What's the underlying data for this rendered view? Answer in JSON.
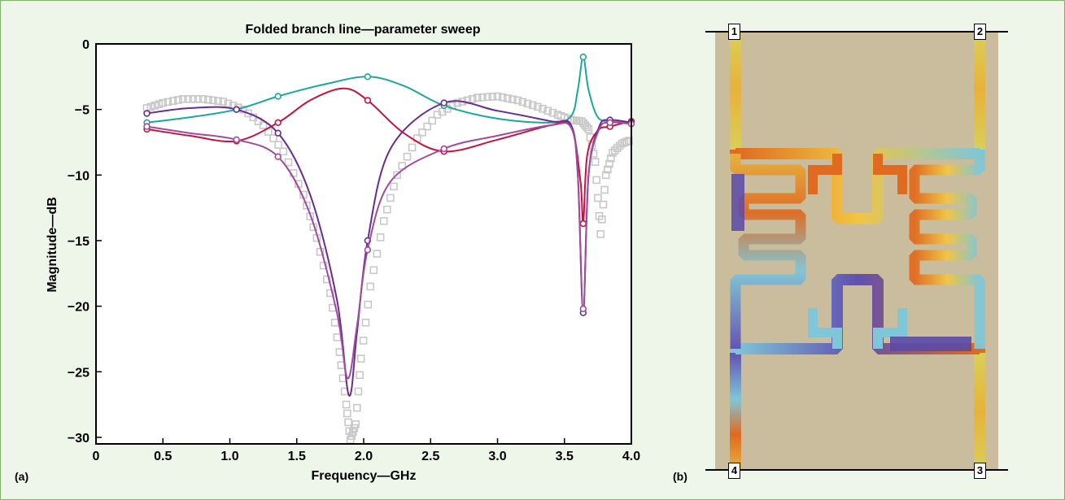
{
  "panels": {
    "a_label": "(a)",
    "b_label": "(b)"
  },
  "layout_ports": [
    "1",
    "2",
    "3",
    "4"
  ],
  "colors": {
    "background": "#eef6ea",
    "border": "#7fb36b",
    "teal": "#1aa89a",
    "red": "#c8123c",
    "purple": "#6a2c8f",
    "magenta": "#a04aa0",
    "measured": "#c8c8c8",
    "board": "#c9bd9e"
  },
  "chart_data": {
    "type": "line",
    "title": "Folded branch line—parameter sweep",
    "xlabel": "Frequency—GHz",
    "ylabel": "Magnitude—dB",
    "xlim": [
      0,
      4.0
    ],
    "ylim": [
      -30.5,
      0
    ],
    "xticks": [
      "0",
      "0.5",
      "1.0",
      "1.5",
      "2.0",
      "2.5",
      "3.0",
      "3.5",
      "4.0"
    ],
    "yticks": [
      "0",
      "−5",
      "−10",
      "−15",
      "−20",
      "−25",
      "−30"
    ],
    "grid": false,
    "series": [
      {
        "color": "teal",
        "marker": "circle",
        "curve": [
          [
            0.38,
            -6.0
          ],
          [
            0.7,
            -5.6
          ],
          [
            1.05,
            -5.0
          ],
          [
            1.36,
            -4.0
          ],
          [
            1.7,
            -3.1
          ],
          [
            2.03,
            -2.5
          ],
          [
            2.3,
            -3.2
          ],
          [
            2.6,
            -4.7
          ],
          [
            3.0,
            -5.7
          ],
          [
            3.4,
            -6.0
          ],
          [
            3.55,
            -5.5
          ],
          [
            3.6,
            -3.5
          ],
          [
            3.64,
            -1.0
          ],
          [
            3.68,
            -3.5
          ],
          [
            3.75,
            -5.6
          ],
          [
            3.85,
            -5.9
          ],
          [
            4.0,
            -6.0
          ]
        ],
        "markers": [
          [
            0.38,
            -6.0
          ],
          [
            1.05,
            -5.0
          ],
          [
            1.36,
            -4.0
          ],
          [
            2.03,
            -2.5
          ],
          [
            2.6,
            -4.7
          ],
          [
            3.64,
            -1.0
          ],
          [
            3.84,
            -6.0
          ]
        ]
      },
      {
        "color": "red",
        "marker": "circle",
        "curve": [
          [
            0.38,
            -6.5
          ],
          [
            0.7,
            -7.0
          ],
          [
            1.05,
            -7.4
          ],
          [
            1.36,
            -6.0
          ],
          [
            1.6,
            -4.3
          ],
          [
            1.85,
            -3.4
          ],
          [
            2.03,
            -4.3
          ],
          [
            2.3,
            -6.8
          ],
          [
            2.6,
            -8.2
          ],
          [
            3.0,
            -7.3
          ],
          [
            3.4,
            -6.2
          ],
          [
            3.55,
            -6.3
          ],
          [
            3.62,
            -10.5
          ],
          [
            3.64,
            -13.7
          ],
          [
            3.67,
            -8.5
          ],
          [
            3.75,
            -6.6
          ],
          [
            3.84,
            -6.3
          ],
          [
            4.0,
            -5.9
          ]
        ],
        "markers": [
          [
            0.38,
            -6.5
          ],
          [
            1.05,
            -7.4
          ],
          [
            1.36,
            -6.0
          ],
          [
            2.03,
            -4.3
          ],
          [
            2.6,
            -8.2
          ],
          [
            3.64,
            -13.7
          ],
          [
            3.84,
            -6.3
          ],
          [
            4.0,
            -5.9
          ]
        ]
      },
      {
        "color": "purple",
        "marker": "circle",
        "curve": [
          [
            0.38,
            -5.3
          ],
          [
            0.7,
            -4.9
          ],
          [
            1.05,
            -5.0
          ],
          [
            1.36,
            -6.8
          ],
          [
            1.6,
            -11.5
          ],
          [
            1.8,
            -19.5
          ],
          [
            1.89,
            -26.8
          ],
          [
            1.95,
            -22.0
          ],
          [
            2.03,
            -15.0
          ],
          [
            2.2,
            -8.0
          ],
          [
            2.6,
            -4.5
          ],
          [
            3.0,
            -5.1
          ],
          [
            3.4,
            -5.9
          ],
          [
            3.55,
            -6.2
          ],
          [
            3.6,
            -10.0
          ],
          [
            3.64,
            -20.5
          ],
          [
            3.68,
            -10.0
          ],
          [
            3.76,
            -6.3
          ],
          [
            3.84,
            -5.8
          ],
          [
            4.0,
            -6.0
          ]
        ],
        "markers": [
          [
            0.38,
            -5.3
          ],
          [
            1.05,
            -5.0
          ],
          [
            1.36,
            -6.8
          ],
          [
            2.03,
            -15.0
          ],
          [
            2.6,
            -4.5
          ],
          [
            3.64,
            -20.5
          ],
          [
            3.84,
            -5.8
          ],
          [
            4.0,
            -6.0
          ]
        ]
      },
      {
        "color": "magenta",
        "marker": "circle",
        "curve": [
          [
            0.38,
            -6.3
          ],
          [
            0.7,
            -6.8
          ],
          [
            1.05,
            -7.3
          ],
          [
            1.36,
            -8.6
          ],
          [
            1.6,
            -13.0
          ],
          [
            1.8,
            -20.5
          ],
          [
            1.88,
            -25.5
          ],
          [
            1.95,
            -21.5
          ],
          [
            2.03,
            -15.7
          ],
          [
            2.2,
            -10.5
          ],
          [
            2.6,
            -8.0
          ],
          [
            3.0,
            -7.0
          ],
          [
            3.4,
            -6.2
          ],
          [
            3.55,
            -6.4
          ],
          [
            3.6,
            -10.0
          ],
          [
            3.64,
            -20.2
          ],
          [
            3.68,
            -10.0
          ],
          [
            3.76,
            -6.5
          ],
          [
            3.84,
            -6.0
          ],
          [
            4.0,
            -6.1
          ]
        ],
        "markers": [
          [
            0.38,
            -6.3
          ],
          [
            1.05,
            -7.3
          ],
          [
            1.36,
            -8.6
          ],
          [
            2.03,
            -15.7
          ],
          [
            2.6,
            -8.0
          ],
          [
            3.64,
            -20.2
          ],
          [
            3.84,
            -6.0
          ],
          [
            4.0,
            -6.1
          ]
        ]
      },
      {
        "color": "measured",
        "marker": "square",
        "curve": [
          [
            0.38,
            -4.9
          ],
          [
            0.5,
            -4.5
          ],
          [
            0.65,
            -4.2
          ],
          [
            0.8,
            -4.2
          ],
          [
            0.95,
            -4.4
          ],
          [
            1.1,
            -5.0
          ],
          [
            1.25,
            -6.2
          ],
          [
            1.4,
            -8.2
          ],
          [
            1.55,
            -11.5
          ],
          [
            1.65,
            -14.8
          ],
          [
            1.75,
            -19.0
          ],
          [
            1.82,
            -23.5
          ],
          [
            1.87,
            -27.5
          ],
          [
            1.9,
            -30.2
          ],
          [
            1.94,
            -29.0
          ],
          [
            1.98,
            -24.0
          ],
          [
            2.05,
            -18.5
          ],
          [
            2.15,
            -13.5
          ],
          [
            2.25,
            -10.0
          ],
          [
            2.4,
            -7.2
          ],
          [
            2.55,
            -5.4
          ],
          [
            2.7,
            -4.5
          ],
          [
            2.85,
            -4.1
          ],
          [
            3.0,
            -4.0
          ],
          [
            3.15,
            -4.3
          ],
          [
            3.3,
            -4.8
          ],
          [
            3.45,
            -5.4
          ],
          [
            3.55,
            -5.8
          ],
          [
            3.63,
            -5.9
          ],
          [
            3.68,
            -6.5
          ],
          [
            3.73,
            -9.0
          ],
          [
            3.77,
            -14.5
          ],
          [
            3.81,
            -10.0
          ],
          [
            3.86,
            -8.3
          ],
          [
            3.93,
            -7.6
          ],
          [
            4.0,
            -7.3
          ]
        ]
      }
    ]
  }
}
